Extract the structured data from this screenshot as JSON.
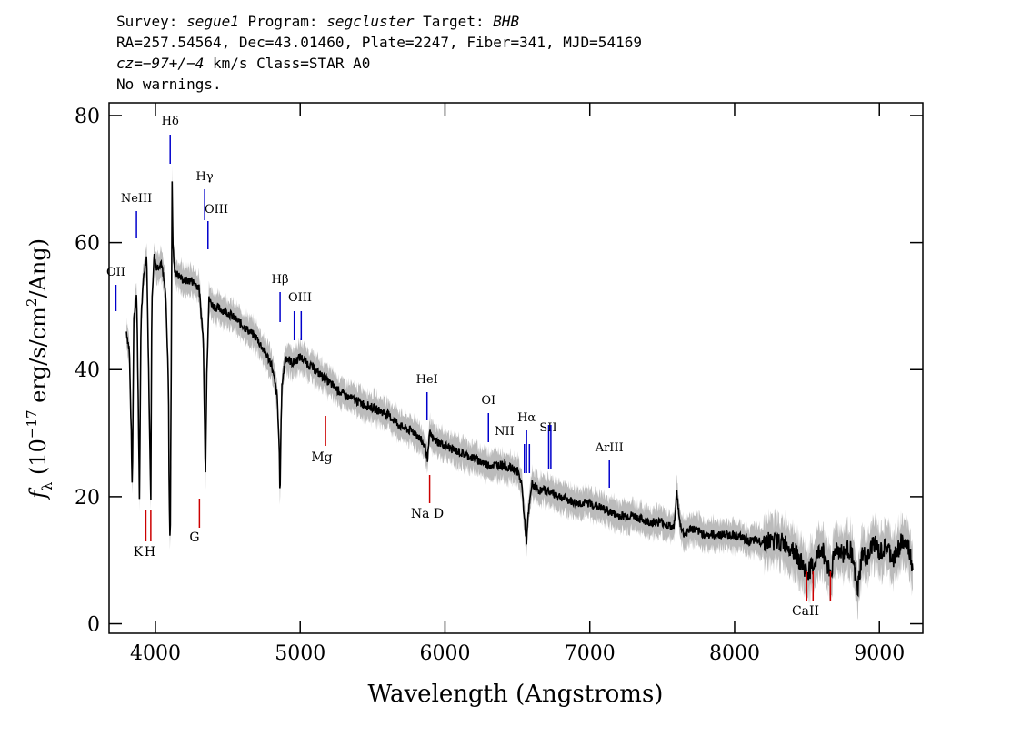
{
  "header": {
    "survey_label": "Survey: ",
    "survey": "segue1",
    "program_label": " Program: ",
    "program": "segcluster",
    "target_label": " Target: ",
    "target": "BHB",
    "line2": "RA=257.54564, Dec=43.01460, Plate=2247, Fiber=341, MJD=54169",
    "cz_label": "cz",
    "cz_value": "=−97+/−4",
    "cz_tail": " km/s Class=STAR A0",
    "line4": "No warnings."
  },
  "colors": {
    "spectrum": "#000000",
    "error_band": "#bbbbbb",
    "emission_marker": "#0000cc",
    "absorption_marker": "#cc0000"
  },
  "chart_data": {
    "type": "line",
    "xlabel": "Wavelength (Angstroms)",
    "ylabel_symbol": "f",
    "ylabel_subscript": "λ",
    "ylabel_units_prefix": " (10",
    "ylabel_exp1": "−17",
    "ylabel_units_mid": " erg/s/cm",
    "ylabel_exp2": "2",
    "ylabel_units_suffix": "/Ang)",
    "xlim": [
      3680,
      9300
    ],
    "ylim": [
      -1.5,
      82
    ],
    "xticks": [
      4000,
      5000,
      6000,
      7000,
      8000,
      9000
    ],
    "yticks": [
      0,
      20,
      40,
      60,
      80
    ],
    "grid": false,
    "spectrum": {
      "x": [
        3800,
        3820,
        3835,
        3840,
        3850,
        3870,
        3880,
        3890,
        3900,
        3920,
        3940,
        3960,
        3968,
        3975,
        3990,
        4010,
        4040,
        4070,
        4090,
        4095,
        4102,
        4108,
        4115,
        4120,
        4130,
        4150,
        4200,
        4250,
        4300,
        4330,
        4340,
        4345,
        4355,
        4370,
        4400,
        4500,
        4600,
        4700,
        4800,
        4840,
        4855,
        4861,
        4866,
        4875,
        4900,
        4950,
        5000,
        5100,
        5200,
        5300,
        5400,
        5500,
        5600,
        5700,
        5800,
        5860,
        5880,
        5895,
        5920,
        6000,
        6100,
        6200,
        6300,
        6400,
        6500,
        6530,
        6550,
        6563,
        6575,
        6600,
        6650,
        6700,
        6800,
        6900,
        7000,
        7100,
        7200,
        7300,
        7400,
        7500,
        7580,
        7600,
        7620,
        7650,
        7700,
        7800,
        7900,
        8000,
        8100,
        8200,
        8300,
        8400,
        8498,
        8542,
        8600,
        8662,
        8700,
        8750,
        8800,
        8830,
        8850,
        8880,
        8920,
        8960,
        9000,
        9050,
        9100,
        9150,
        9200,
        9230
      ],
      "y": [
        46,
        43,
        28,
        20,
        48,
        52,
        38,
        19,
        48,
        55,
        58,
        30,
        20,
        50,
        58,
        56,
        57,
        52,
        38,
        20,
        12,
        35,
        70,
        60,
        56,
        55,
        54,
        54,
        53,
        45,
        32,
        22,
        40,
        51,
        50,
        49,
        47,
        45,
        41,
        36,
        28,
        19,
        30,
        38,
        42,
        41,
        42,
        40,
        38,
        36,
        35,
        34,
        33,
        31,
        30,
        28,
        26,
        30,
        29,
        28,
        27,
        26,
        25,
        25,
        24,
        22,
        16,
        13,
        17,
        22,
        21,
        21,
        20,
        19,
        19,
        18,
        17,
        17,
        16,
        16,
        15,
        21,
        16,
        14,
        15,
        14,
        14,
        14,
        13,
        13,
        13,
        12,
        8,
        9,
        12,
        8,
        12,
        11,
        12,
        8,
        5,
        11,
        10,
        13,
        11,
        12,
        10,
        13,
        12,
        9
      ]
    },
    "line_markers": [
      {
        "label": "NeIII",
        "x": 3869,
        "kind": "emission"
      },
      {
        "label": "OII",
        "x": 3727,
        "kind": "emission"
      },
      {
        "label": "Hδ",
        "x": 4102,
        "kind": "emission"
      },
      {
        "label": "Hγ",
        "x": 4340,
        "kind": "emission"
      },
      {
        "label": "OIII",
        "x": 4363,
        "kind": "emission"
      },
      {
        "label": "Hβ",
        "x": 4861,
        "kind": "emission"
      },
      {
        "label": "OIII",
        "x": 4959,
        "kind": "emission"
      },
      {
        "label": "OIII",
        "x": 5007,
        "kind": "emission"
      },
      {
        "label": "HeI",
        "x": 5876,
        "kind": "emission"
      },
      {
        "label": "OI",
        "x": 6300,
        "kind": "emission"
      },
      {
        "label": "NII",
        "x": 6548,
        "kind": "emission"
      },
      {
        "label": "Hα",
        "x": 6563,
        "kind": "emission"
      },
      {
        "label": "NII",
        "x": 6583,
        "kind": "emission"
      },
      {
        "label": "SII",
        "x": 6716,
        "kind": "emission"
      },
      {
        "label": "SII",
        "x": 6731,
        "kind": "emission"
      },
      {
        "label": "ArIII",
        "x": 7135,
        "kind": "emission"
      },
      {
        "label": "K",
        "x": 3934,
        "kind": "absorption"
      },
      {
        "label": "H",
        "x": 3968,
        "kind": "absorption"
      },
      {
        "label": "G",
        "x": 4304,
        "kind": "absorption"
      },
      {
        "label": "Mg",
        "x": 5175,
        "kind": "absorption"
      },
      {
        "label": "Na D",
        "x": 5894,
        "kind": "absorption"
      },
      {
        "label": "CaII",
        "x": 8498,
        "kind": "absorption"
      },
      {
        "label": "CaII",
        "x": 8542,
        "kind": "absorption"
      },
      {
        "label": "CaII",
        "x": 8662,
        "kind": "absorption"
      }
    ],
    "absorption_labels": [
      {
        "label": "K",
        "x": 3934
      },
      {
        "label": "H",
        "x": 3968
      },
      {
        "label": "G",
        "x": 4304
      },
      {
        "label": "Mg",
        "x": 5175
      },
      {
        "label": "Na D",
        "x": 5894
      },
      {
        "label": "CaII",
        "x": 8542
      }
    ]
  }
}
